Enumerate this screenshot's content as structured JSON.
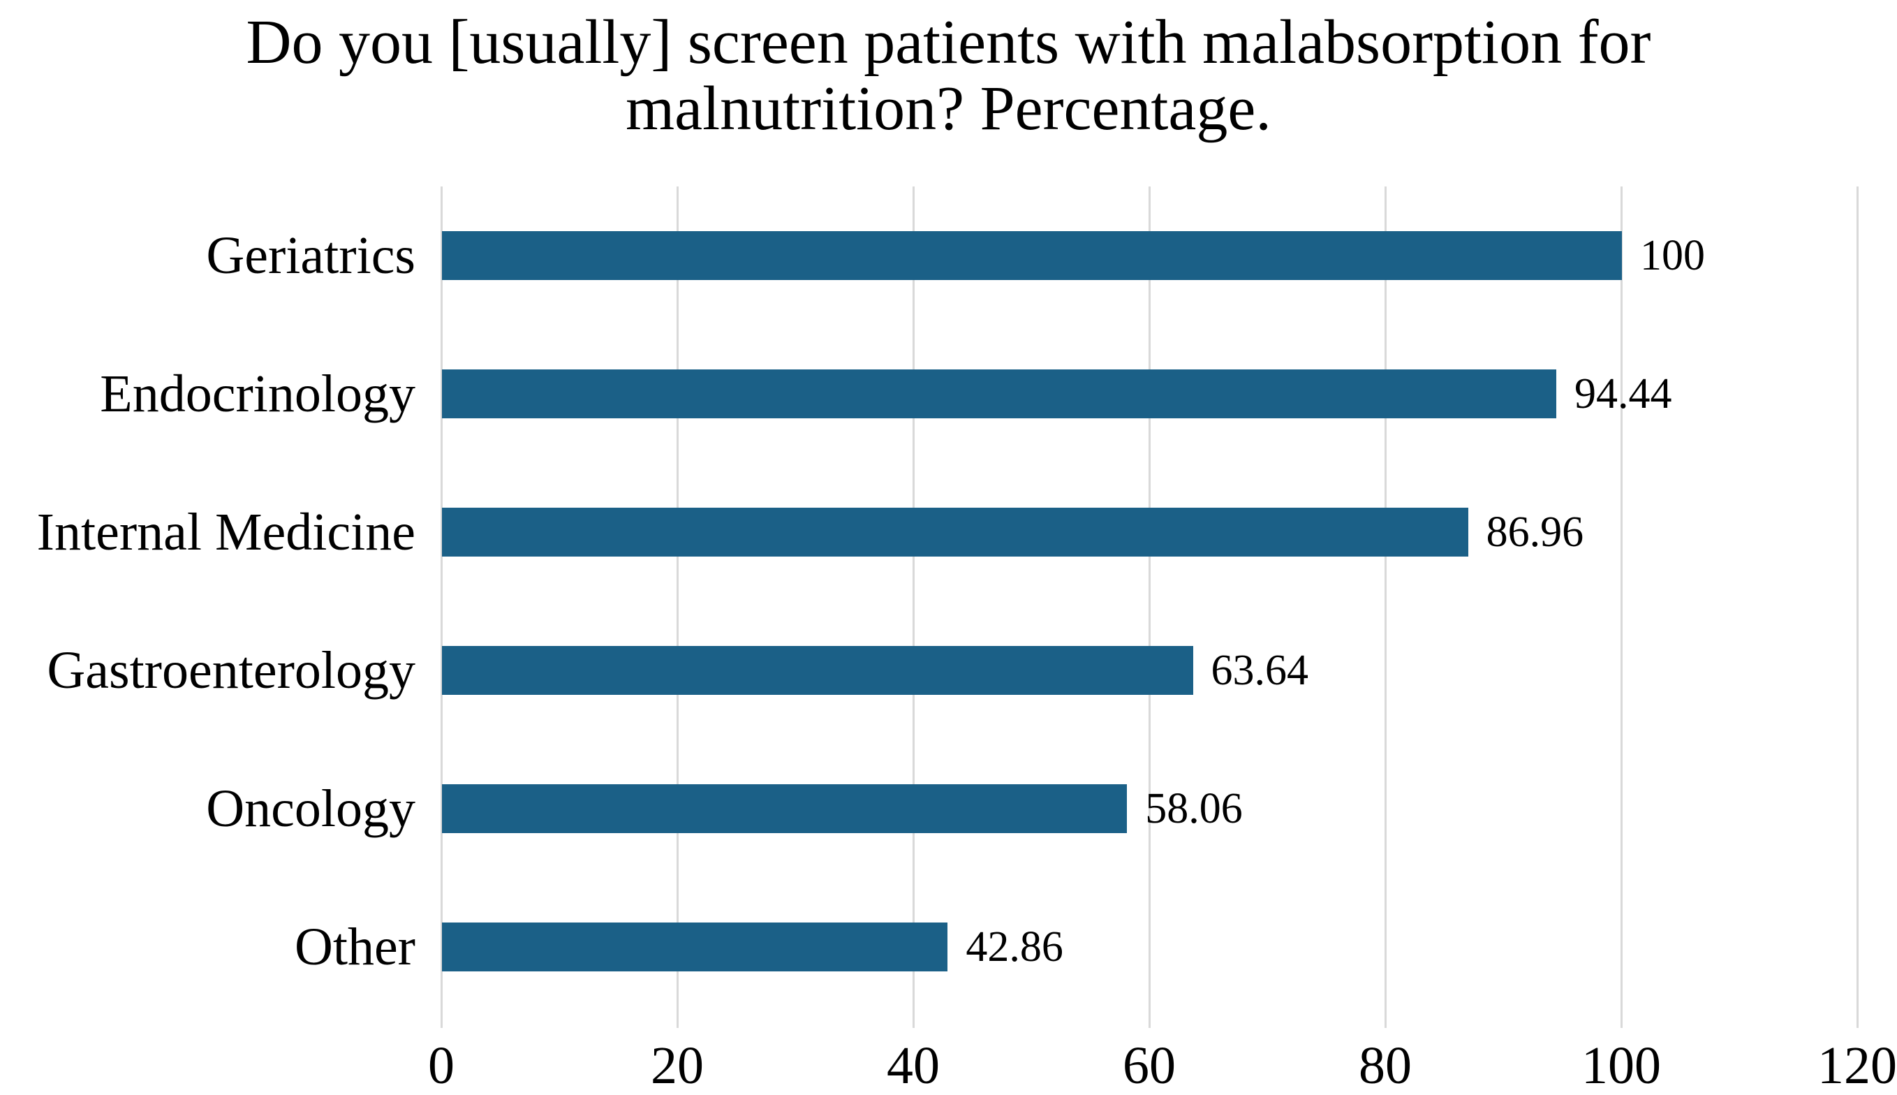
{
  "title": {
    "line1": "Do you [usually] screen patients with malabsorption for",
    "line2": "malnutrition? Percentage."
  },
  "chart_data": {
    "type": "bar",
    "orientation": "horizontal",
    "title": "Do you [usually] screen patients with malabsorption for malnutrition? Percentage.",
    "categories": [
      "Geriatrics",
      "Endocrinology",
      "Internal Medicine",
      "Gastroenterology",
      "Oncology",
      "Other"
    ],
    "values": [
      100,
      94.44,
      86.96,
      63.64,
      58.06,
      42.86
    ],
    "value_labels": [
      "100",
      "94.44",
      "86.96",
      "63.64",
      "58.06",
      "42.86"
    ],
    "xlabel": "",
    "ylabel": "",
    "xlim": [
      0,
      120
    ],
    "xticks": [
      0,
      20,
      40,
      60,
      80,
      100,
      120
    ],
    "xtick_labels": [
      "0",
      "20",
      "40",
      "60",
      "80",
      "100",
      "120"
    ],
    "grid": true,
    "legend": false,
    "colors": {
      "bar": "#1b6087",
      "gridline": "#d9d9d9",
      "text": "#000000",
      "background": "#ffffff"
    }
  }
}
